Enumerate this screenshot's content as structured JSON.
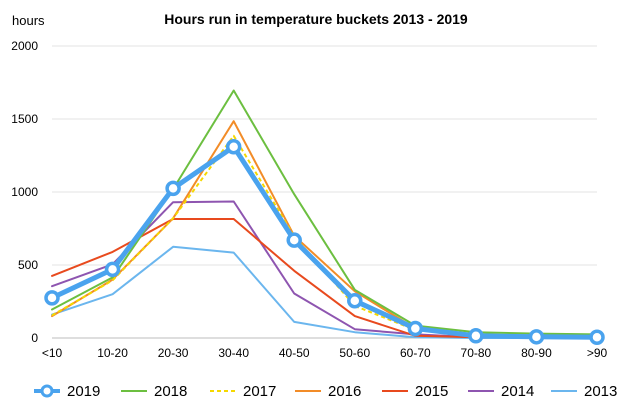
{
  "chart_data": {
    "type": "line",
    "title": "Hours run in temperature buckets 2013 - 2019",
    "ylabel": "hours",
    "xlabel": "",
    "categories": [
      "<10",
      "10-20",
      "20-30",
      "30-40",
      "40-50",
      "50-60",
      "60-70",
      "70-80",
      "80-90",
      ">90"
    ],
    "ylim": [
      0,
      2000
    ],
    "yticks": [
      "0",
      "500",
      "1000",
      "1500",
      "2000"
    ],
    "grid": true,
    "legend_position": "bottom",
    "series": [
      {
        "name": "2019",
        "color": "#4AA3EE",
        "style": "thick-markers",
        "values": [
          275,
          470,
          1025,
          1310,
          670,
          255,
          65,
          15,
          8,
          5
        ]
      },
      {
        "name": "2018",
        "color": "#6CBF40",
        "style": "solid",
        "values": [
          195,
          415,
          1020,
          1695,
          985,
          330,
          85,
          40,
          30,
          25
        ]
      },
      {
        "name": "2017",
        "color": "#F5D800",
        "style": "dashed",
        "values": [
          155,
          395,
          820,
          1385,
          695,
          220,
          55,
          20,
          15,
          10
        ]
      },
      {
        "name": "2016",
        "color": "#F28C28",
        "style": "solid",
        "values": [
          150,
          400,
          820,
          1485,
          700,
          320,
          65,
          25,
          15,
          10
        ]
      },
      {
        "name": "2015",
        "color": "#E84A1E",
        "style": "solid",
        "values": [
          425,
          590,
          815,
          815,
          460,
          150,
          15,
          5,
          2,
          0
        ]
      },
      {
        "name": "2014",
        "color": "#8E55B0",
        "style": "solid",
        "values": [
          355,
          505,
          930,
          935,
          305,
          60,
          25,
          5,
          2,
          0
        ]
      },
      {
        "name": "2013",
        "color": "#6BB6EE",
        "style": "solid",
        "values": [
          160,
          300,
          625,
          585,
          110,
          40,
          5,
          0,
          0,
          0
        ]
      }
    ]
  }
}
